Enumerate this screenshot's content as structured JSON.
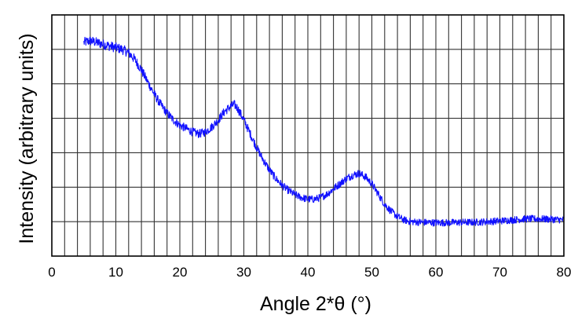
{
  "chart_data": {
    "type": "line",
    "xlabel": "Angle 2*θ (°)",
    "ylabel": "Intensity (arbitrary units)",
    "xlim": [
      0,
      80
    ],
    "ylim": [
      0,
      7
    ],
    "x_ticks": [
      0,
      10,
      20,
      30,
      40,
      50,
      60,
      70,
      80
    ],
    "x_tick_labels": [
      "0",
      "10",
      "20",
      "30",
      "40",
      "50",
      "60",
      "70",
      "80"
    ],
    "y_tick_labels_shown": false,
    "grid": true,
    "grid_x_step": 2,
    "grid_y_step": 1,
    "series": [
      {
        "color": "#1010ff",
        "x": [
          5,
          6,
          7,
          8,
          9,
          10,
          11,
          12,
          13,
          14,
          15,
          16,
          17,
          18,
          19,
          20,
          21,
          22,
          23,
          24,
          25,
          26,
          27,
          28,
          28.5,
          29,
          30,
          31,
          32,
          33,
          34,
          35,
          36,
          37,
          38,
          39,
          40,
          41,
          42,
          43,
          44,
          45,
          46,
          47,
          48,
          49,
          50,
          51,
          52,
          53,
          54,
          55,
          56,
          58,
          60,
          62,
          64,
          66,
          68,
          70,
          72,
          74,
          76,
          78,
          80
        ],
        "values": [
          6.2,
          6.25,
          6.2,
          6.15,
          6.1,
          6.05,
          6.0,
          5.9,
          5.7,
          5.4,
          5.05,
          4.7,
          4.4,
          4.15,
          3.95,
          3.8,
          3.7,
          3.6,
          3.55,
          3.6,
          3.75,
          3.95,
          4.2,
          4.35,
          4.4,
          4.3,
          3.95,
          3.55,
          3.15,
          2.8,
          2.5,
          2.25,
          2.05,
          1.9,
          1.78,
          1.7,
          1.65,
          1.65,
          1.7,
          1.8,
          1.95,
          2.1,
          2.25,
          2.35,
          2.4,
          2.3,
          2.1,
          1.8,
          1.5,
          1.3,
          1.15,
          1.05,
          1.0,
          0.98,
          0.97,
          0.97,
          0.98,
          0.98,
          1.0,
          1.02,
          1.05,
          1.08,
          1.08,
          1.07,
          1.05
        ]
      }
    ]
  }
}
